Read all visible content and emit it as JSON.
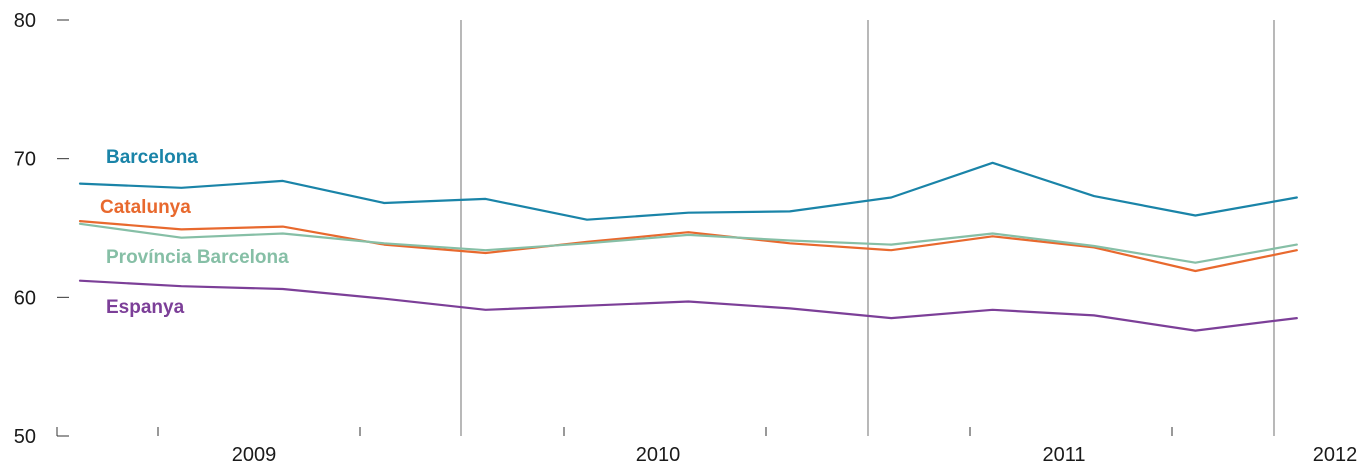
{
  "chart_data": {
    "type": "line",
    "title": "",
    "xlabel": "",
    "ylabel": "",
    "ylim": [
      50,
      80
    ],
    "y_ticks": [
      50,
      60,
      70,
      80
    ],
    "x_points": [
      "2009 Q1",
      "2009 Q2",
      "2009 Q3",
      "2009 Q4",
      "2010 Q1",
      "2010 Q2",
      "2010 Q3",
      "2010 Q4",
      "2011 Q1",
      "2011 Q2",
      "2011 Q3",
      "2011 Q4",
      "2012 Q1"
    ],
    "year_labels": [
      "2009",
      "2010",
      "2011",
      "2012"
    ],
    "grid": "vertical lines at year boundaries",
    "legend": "inline labels at left of lines",
    "series": [
      {
        "name": "Barcelona",
        "color": "#1a84a8",
        "values": [
          68.2,
          67.9,
          68.4,
          66.8,
          67.1,
          65.6,
          66.1,
          66.2,
          67.2,
          69.7,
          67.3,
          65.9,
          67.2
        ]
      },
      {
        "name": "Catalunya",
        "color": "#e8692e",
        "values": [
          65.5,
          64.9,
          65.1,
          63.8,
          63.2,
          64.0,
          64.7,
          63.9,
          63.4,
          64.4,
          63.6,
          61.9,
          63.4
        ]
      },
      {
        "name": "Província Barcelona",
        "color": "#86bfa6",
        "values": [
          65.3,
          64.3,
          64.6,
          63.9,
          63.4,
          63.9,
          64.5,
          64.1,
          63.8,
          64.6,
          63.7,
          62.5,
          63.8
        ]
      },
      {
        "name": "Espanya",
        "color": "#7c3f98",
        "values": [
          61.2,
          60.8,
          60.6,
          59.9,
          59.1,
          59.4,
          59.7,
          59.2,
          58.5,
          59.1,
          58.7,
          57.6,
          58.5
        ]
      }
    ]
  }
}
